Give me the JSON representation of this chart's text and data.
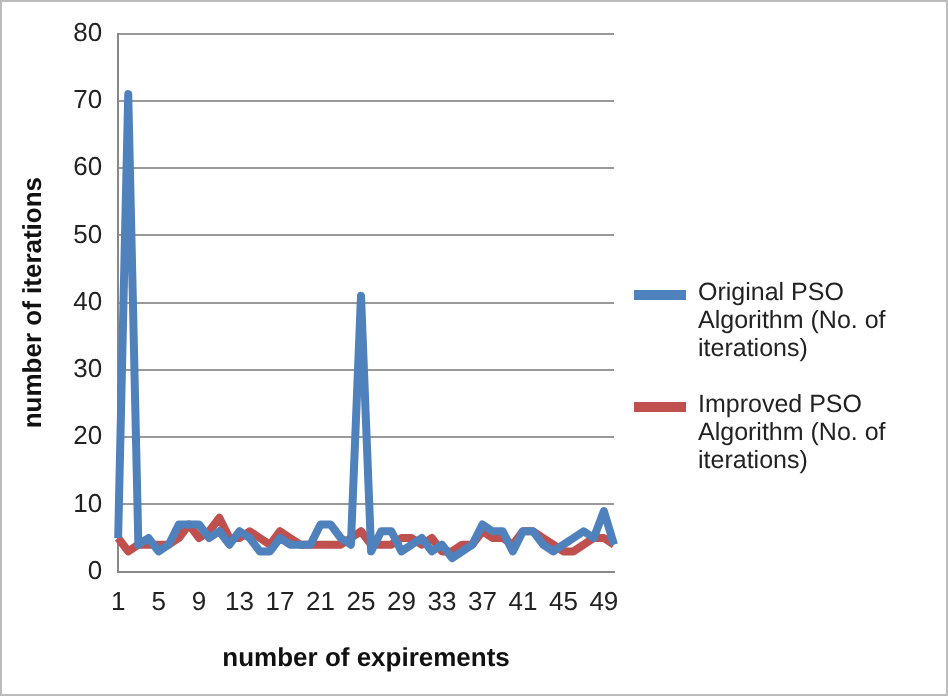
{
  "chart_data": {
    "type": "line",
    "xlabel": "number of expirements",
    "ylabel": "number of iterations",
    "categories": [
      "1",
      null,
      null,
      null,
      "5",
      null,
      null,
      null,
      "9",
      null,
      null,
      null,
      "13",
      null,
      null,
      null,
      "17",
      null,
      null,
      null,
      "21",
      null,
      null,
      null,
      "25",
      null,
      null,
      null,
      "29",
      null,
      null,
      null,
      "33",
      null,
      null,
      null,
      "37",
      null,
      null,
      null,
      "41",
      null,
      null,
      null,
      "45",
      null,
      null,
      null,
      "49",
      null
    ],
    "series": [
      {
        "name": "Original PSO Algorithm  (No. of iterations)",
        "color": "#4f81bd",
        "values": [
          5,
          71,
          4,
          5,
          3,
          4,
          7,
          7,
          7,
          5,
          6,
          4,
          6,
          5,
          3,
          3,
          5,
          4,
          4,
          4,
          7,
          7,
          5,
          4,
          41,
          3,
          6,
          6,
          3,
          4,
          5,
          3,
          4,
          2,
          3,
          4,
          7,
          6,
          6,
          3,
          6,
          6,
          4,
          3,
          4,
          5,
          6,
          5,
          9,
          4
        ]
      },
      {
        "name": "Improved PSO Algorithm (No. of iterations)",
        "color": "#c0504d",
        "values": [
          5,
          3,
          4,
          4,
          4,
          4,
          5,
          7,
          5,
          6,
          8,
          5,
          5,
          6,
          5,
          4,
          6,
          5,
          4,
          4,
          4,
          4,
          4,
          5,
          6,
          4,
          4,
          4,
          5,
          5,
          4,
          5,
          3,
          3,
          4,
          4,
          6,
          5,
          5,
          4,
          6,
          6,
          5,
          4,
          3,
          3,
          4,
          5,
          5,
          4
        ]
      }
    ],
    "ylim": [
      0,
      80
    ],
    "yticks": [
      0,
      10,
      20,
      30,
      40,
      50,
      60,
      70,
      80
    ],
    "grid": "y",
    "legend": "right",
    "marker": "none"
  }
}
